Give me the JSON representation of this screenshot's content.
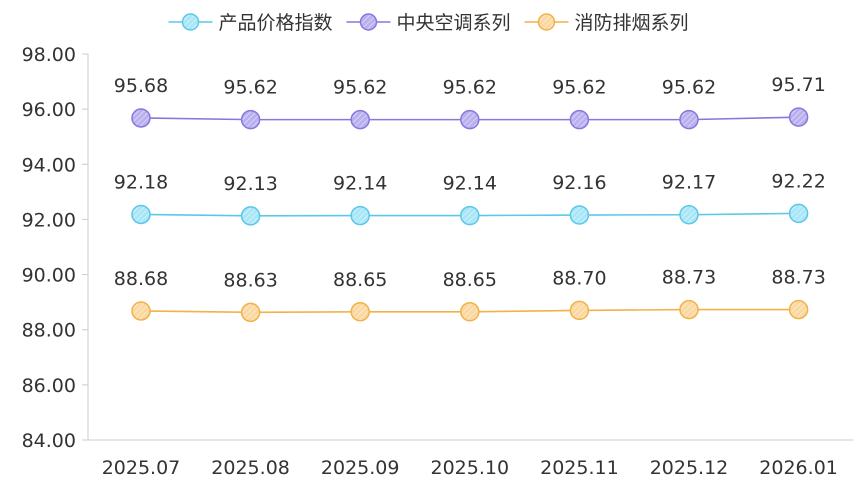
{
  "chart_data": {
    "type": "line",
    "categories": [
      "2025.07",
      "2025.08",
      "2025.09",
      "2025.10",
      "2025.11",
      "2025.12",
      "2026.01"
    ],
    "series": [
      {
        "name": "产品价格指数",
        "color": "#5bc8ea",
        "fill": "#a9e6f7",
        "values": [
          92.18,
          92.13,
          92.14,
          92.14,
          92.16,
          92.17,
          92.22
        ]
      },
      {
        "name": "中央空调系列",
        "color": "#8877dd",
        "fill": "#b9b0f0",
        "values": [
          95.68,
          95.62,
          95.62,
          95.62,
          95.62,
          95.62,
          95.71
        ]
      },
      {
        "name": "消防排烟系列",
        "color": "#f2b24a",
        "fill": "#fad8a0",
        "values": [
          88.68,
          88.63,
          88.65,
          88.65,
          88.7,
          88.73,
          88.73
        ]
      }
    ],
    "ylim": [
      84,
      98
    ],
    "yticks": [
      "84.00",
      "86.00",
      "88.00",
      "90.00",
      "92.00",
      "94.00",
      "96.00",
      "98.00"
    ],
    "value_format_decimals": 2,
    "legend_position": "top-center",
    "grid": false,
    "xlabel": "",
    "ylabel": "",
    "title": ""
  }
}
